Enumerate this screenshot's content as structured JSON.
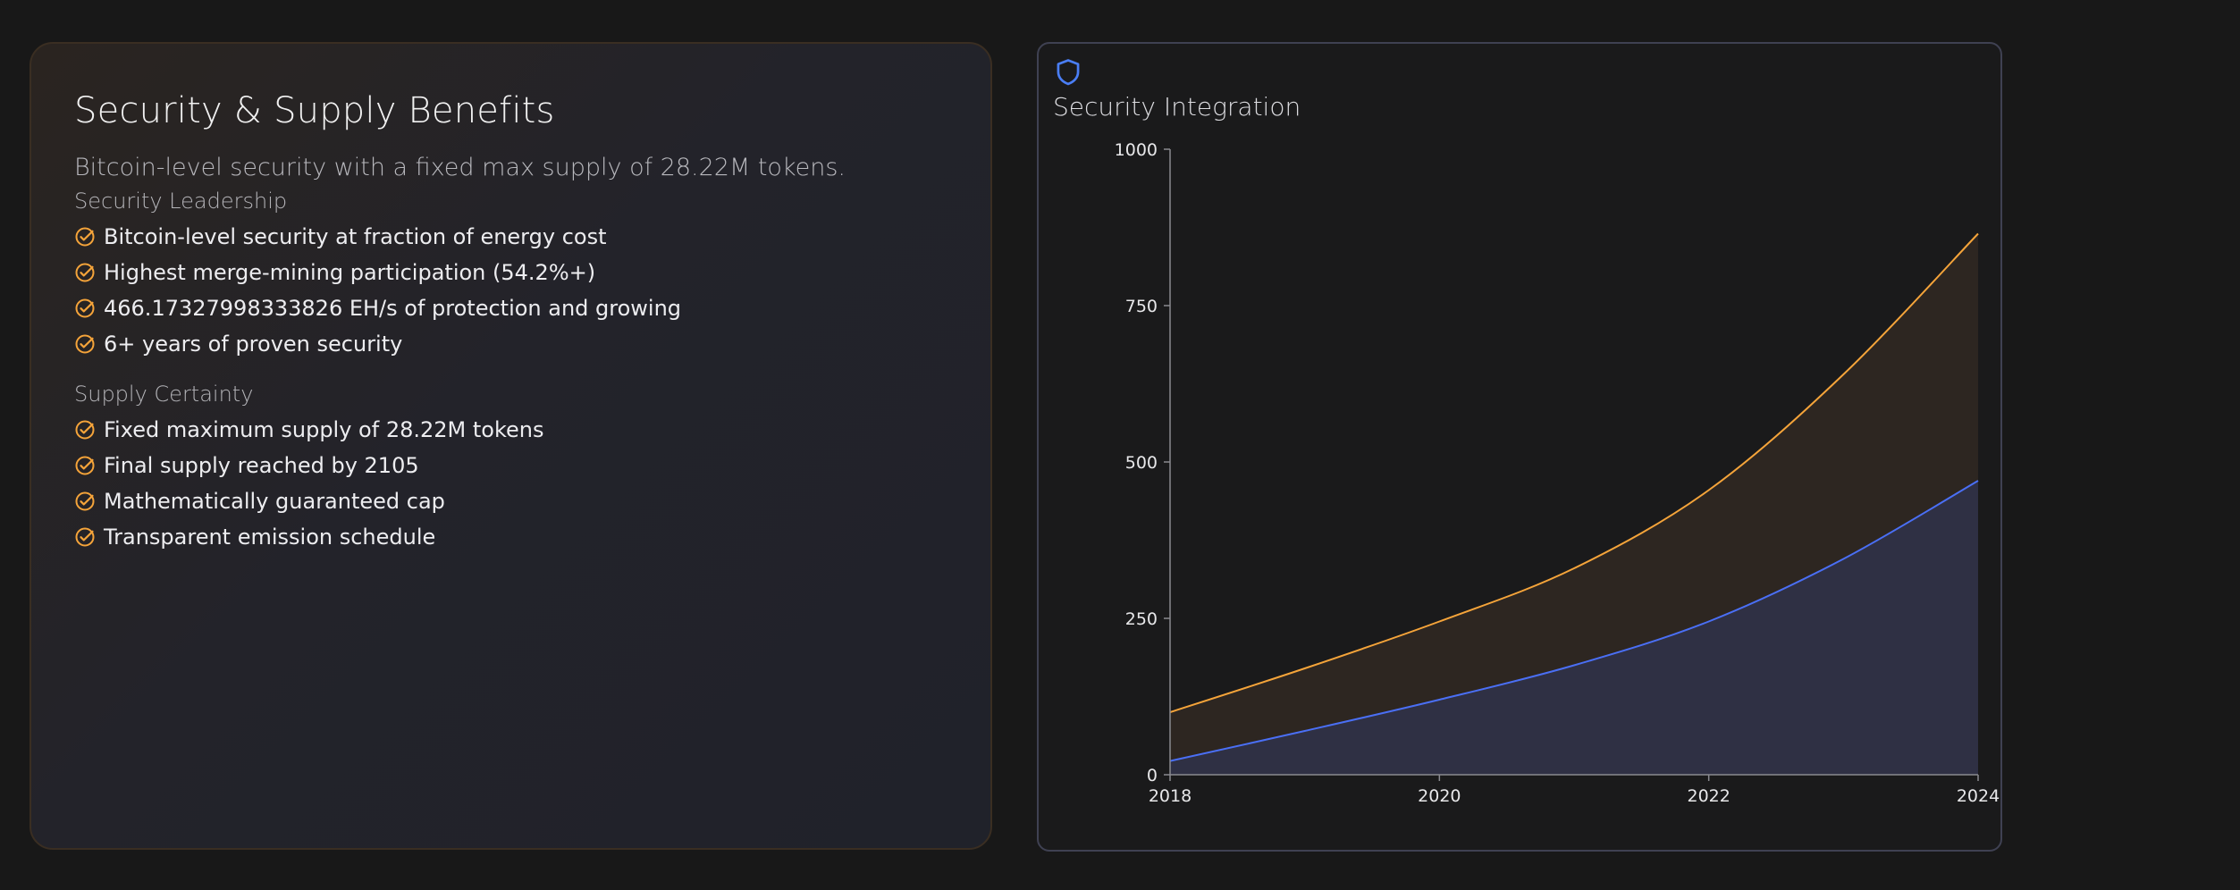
{
  "benefits": {
    "title": "Security & Supply Benefits",
    "subtitle": "Bitcoin-level security with a fixed max supply of 28.22M tokens.",
    "sections": [
      {
        "title": "Security Leadership",
        "items": [
          "Bitcoin-level security at fraction of energy cost",
          "Highest merge-mining participation (54.2%+)",
          "466.17327998333826 EH/s of protection and growing",
          "6+ years of proven security"
        ]
      },
      {
        "title": "Supply Certainty",
        "items": [
          "Fixed maximum supply of 28.22M tokens",
          "Final supply reached by 2105",
          "Mathematically guaranteed cap",
          "Transparent emission schedule"
        ]
      }
    ],
    "check_icon": "check-circle-icon",
    "accent_color": "#f5a43a"
  },
  "chart_panel": {
    "icon": "shield-icon",
    "icon_color": "#4a7ef5",
    "title": "Security Integration"
  },
  "chart_data": {
    "type": "area",
    "title": "Security Integration",
    "xlabel": "",
    "ylabel": "",
    "x": [
      2018,
      2019,
      2020,
      2021,
      2022,
      2023,
      2024
    ],
    "xticks": [
      2018,
      2020,
      2022,
      2024
    ],
    "yticks": [
      0,
      250,
      500,
      750,
      1000
    ],
    "xlim": [
      2018,
      2024
    ],
    "ylim": [
      0,
      1000
    ],
    "grid": false,
    "legend": "none",
    "series": [
      {
        "values": [
          100,
          170,
          245,
          330,
          455,
          640,
          865
        ],
        "color": "#f5a43a",
        "fill": "#2d2621"
      },
      {
        "values": [
          22,
          70,
          120,
          175,
          245,
          345,
          470
        ],
        "color": "#4a6ff5",
        "fill": "#2f3044"
      }
    ]
  }
}
